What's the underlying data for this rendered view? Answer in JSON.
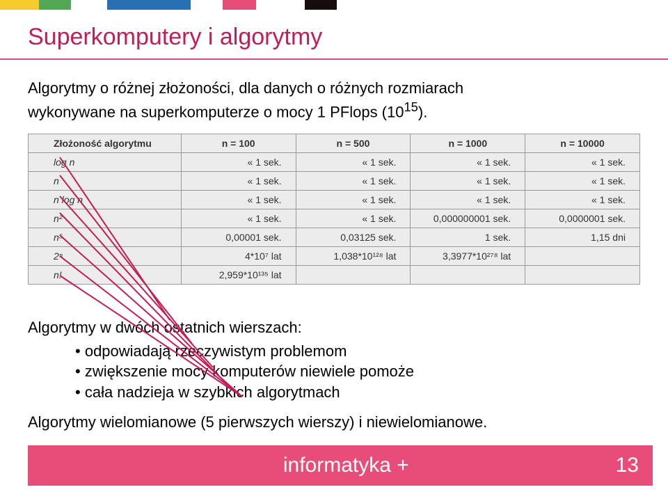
{
  "colors": {
    "title": "#c41c54",
    "underline": "#d14a8c",
    "footer_bg": "#e84c78",
    "topbar": [
      "#f6cc2c",
      "#52a855",
      "#ffffff",
      "#2b6fb3",
      "#ffffff",
      "#e84c78",
      "#ffffff",
      "#140d0c"
    ],
    "diag_line": "#c41c54"
  },
  "title": "Superkomputery i algorytmy",
  "para1_l1": "Algorytmy o różnej złożoności, dla danych o różnych rozmiarach",
  "para1_l2": "wykonywane na superkomputerze o mocy 1 PFlops (10",
  "para1_sup": "15",
  "para1_tail": ").",
  "table": {
    "headers": [
      "Złożoność algorytmu",
      "n = 100",
      "n = 500",
      "n = 1000",
      "n = 10000"
    ],
    "rows": [
      [
        "log n",
        "« 1 sek.",
        "« 1 sek.",
        "« 1 sek.",
        "« 1 sek."
      ],
      [
        "n",
        "« 1 sek.",
        "« 1 sek.",
        "« 1 sek.",
        "« 1 sek."
      ],
      [
        "n log n",
        "« 1 sek.",
        "« 1 sek.",
        "« 1 sek.",
        "« 1 sek."
      ],
      [
        "n²",
        "« 1 sek.",
        "« 1 sek.",
        "0,000000001 sek.",
        "0,0000001 sek."
      ],
      [
        "n⁵",
        "0,00001 sek.",
        "0,03125 sek.",
        "1 sek.",
        "1,15 dni"
      ],
      [
        "2ⁿ",
        "4*10⁷ lat",
        "1,038*10¹²⁸ lat",
        "3,3977*10²⁷⁸ lat",
        ""
      ],
      [
        "n!",
        "2,959*10¹³⁵ lat",
        "",
        "",
        ""
      ]
    ]
  },
  "para2_intro": "Algorytmy w dwóch ostatnich wierszach:",
  "bullets": {
    "b1": "odpowiadają rzeczywistym problemom",
    "b2": "zwiększenie mocy komputerów niewiele pomoże",
    "b3": "cała nadzieja w szybkich algorytmach"
  },
  "para3": "Algorytmy wielomianowe (5 pierwszych wierszy) i niewielomianowe.",
  "footer": {
    "text": "informatyka +",
    "page": "13"
  },
  "lines": {
    "stroke_width": 2,
    "segments": [
      [
        86,
        226,
        244,
        460
      ],
      [
        86,
        252,
        276,
        494
      ],
      [
        86,
        282,
        306,
        528
      ],
      [
        86,
        306,
        328,
        554
      ],
      [
        86,
        338,
        348,
        570
      ],
      [
        86,
        368,
        348,
        570
      ],
      [
        86,
        396,
        348,
        570
      ]
    ]
  }
}
